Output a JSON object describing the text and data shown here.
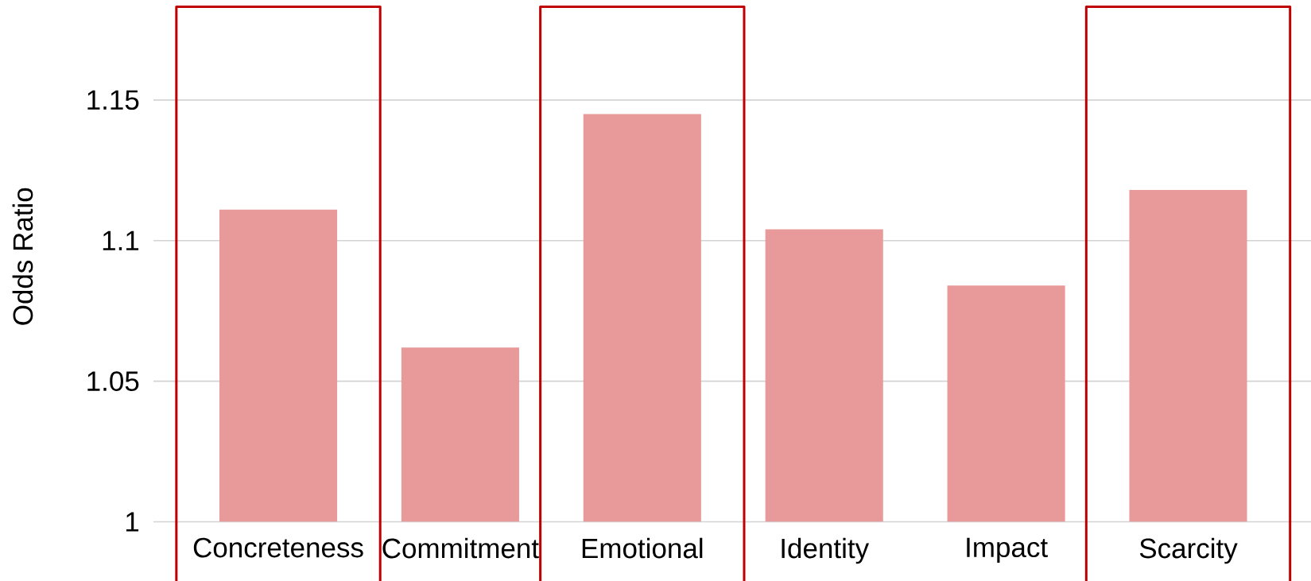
{
  "chart_data": {
    "type": "bar",
    "ylabel": "Odds Ratio",
    "categories": [
      "Concreteness",
      "Commitment",
      "Emotional",
      "Identity",
      "Impact",
      "Scarcity"
    ],
    "values": [
      1.111,
      1.062,
      1.145,
      1.104,
      1.084,
      1.118
    ],
    "color": "#e8999a",
    "ylim": [
      1,
      1.15
    ],
    "yticks": [
      1,
      1.05,
      1.1,
      1.15
    ],
    "grid": "y"
  }
}
